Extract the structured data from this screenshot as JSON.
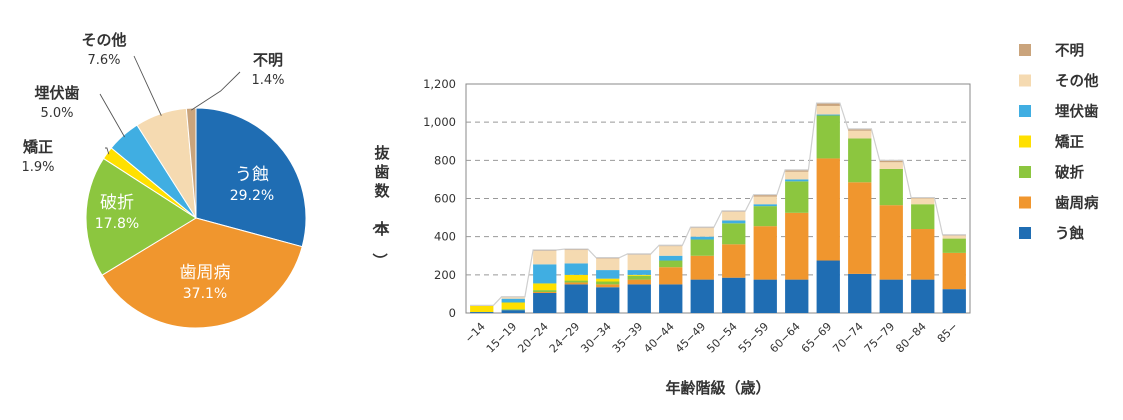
{
  "chart_data": [
    {
      "type": "pie",
      "start_angle_deg": 0,
      "direction": "clockwise",
      "slices": [
        {
          "name": "う蝕",
          "value": 29.2,
          "label": "29.2%",
          "color": "#1f6db3"
        },
        {
          "name": "歯周病",
          "value": 37.1,
          "label": "37.1%",
          "color": "#f0962e"
        },
        {
          "name": "破折",
          "value": 17.8,
          "label": "17.8%",
          "color": "#8cc63f"
        },
        {
          "name": "矯正",
          "value": 1.9,
          "label": "1.9%",
          "color": "#ffe000"
        },
        {
          "name": "埋伏歯",
          "value": 5.0,
          "label": "5.0%",
          "color": "#40aee2"
        },
        {
          "name": "その他",
          "value": 7.6,
          "label": "7.6%",
          "color": "#f5dab1"
        },
        {
          "name": "不明",
          "value": 1.4,
          "label": "1.4%",
          "color": "#caa47c"
        }
      ]
    },
    {
      "type": "bar",
      "stacked": true,
      "xlabel": "年齢階級（歳）",
      "ylabel": "抜歯数（本）",
      "ylim": [
        0,
        1200
      ],
      "yticks": [
        0,
        200,
        400,
        600,
        800,
        1000,
        1200
      ],
      "ytick_labels": [
        "0",
        "200",
        "400",
        "600",
        "800",
        "1,000",
        "1,200"
      ],
      "grid": "horizontal dashed",
      "legend_position": "right",
      "categories": [
        "−14",
        "15−19",
        "20−24",
        "24−29",
        "30−34",
        "35−39",
        "40−44",
        "45−49",
        "50−54",
        "55−59",
        "60−64",
        "65−69",
        "70−74",
        "75−79",
        "80−84",
        "85−"
      ],
      "series": [
        {
          "name": "う蝕",
          "color": "#1f6db3",
          "values": [
            5,
            15,
            105,
            150,
            135,
            150,
            150,
            175,
            185,
            175,
            175,
            275,
            205,
            175,
            175,
            125
          ]
        },
        {
          "name": "歯周病",
          "color": "#f0962e",
          "values": [
            0,
            0,
            5,
            10,
            15,
            25,
            90,
            125,
            175,
            280,
            350,
            535,
            480,
            390,
            265,
            190
          ]
        },
        {
          "name": "破折",
          "color": "#8cc63f",
          "values": [
            0,
            5,
            10,
            10,
            15,
            20,
            35,
            85,
            110,
            105,
            165,
            225,
            230,
            190,
            130,
            75
          ]
        },
        {
          "name": "矯正",
          "color": "#ffe000",
          "values": [
            35,
            35,
            35,
            30,
            15,
            5,
            0,
            0,
            0,
            0,
            0,
            0,
            0,
            0,
            0,
            0
          ]
        },
        {
          "name": "埋伏歯",
          "color": "#40aee2",
          "values": [
            0,
            20,
            100,
            60,
            45,
            25,
            25,
            15,
            15,
            10,
            10,
            5,
            0,
            0,
            0,
            0
          ]
        },
        {
          "name": "その他",
          "color": "#f5dab1",
          "values": [
            0,
            10,
            70,
            70,
            60,
            80,
            50,
            45,
            45,
            40,
            40,
            45,
            40,
            35,
            30,
            15
          ]
        },
        {
          "name": "不明",
          "color": "#caa47c",
          "values": [
            0,
            0,
            5,
            5,
            5,
            5,
            5,
            5,
            5,
            10,
            10,
            15,
            10,
            10,
            5,
            5
          ]
        }
      ]
    }
  ]
}
